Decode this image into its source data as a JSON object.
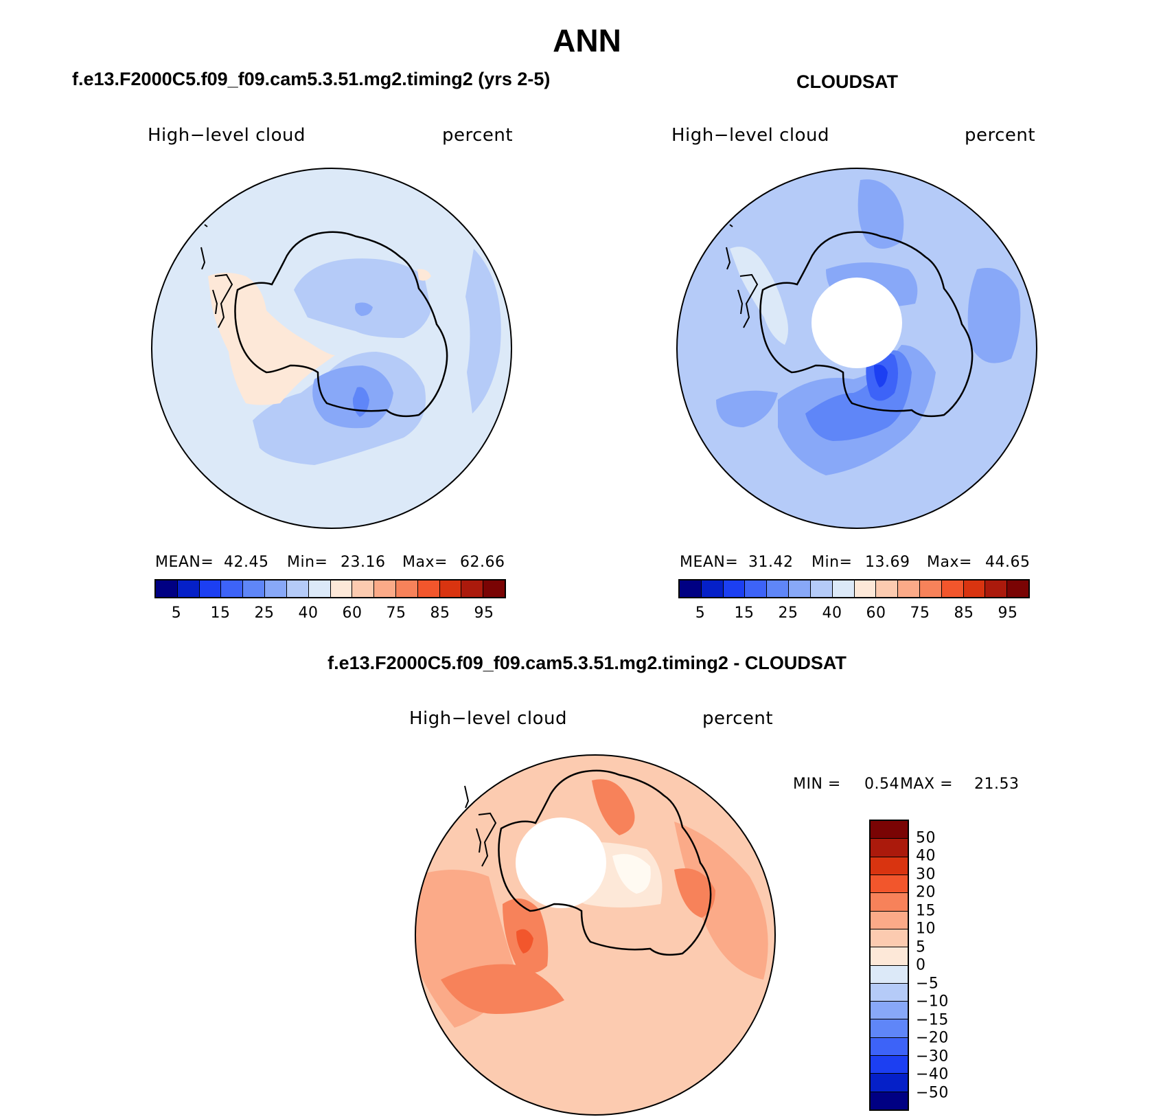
{
  "title": "ANN",
  "panels": {
    "model": {
      "header": "f.e13.F2000C5.f09_f09.cam5.3.51.mg2.timing2 (yrs 2-5)",
      "variable": "High−level cloud",
      "units": "percent",
      "stats": {
        "mean_label": "MEAN=",
        "mean": "42.45",
        "min_label": "Min=",
        "min": "23.16",
        "max_label": "Max=",
        "max": "62.66"
      }
    },
    "obs": {
      "header": "CLOUDSAT",
      "variable": "High−level cloud",
      "units": "percent",
      "stats": {
        "mean_label": "MEAN=",
        "mean": "31.42",
        "min_label": "Min=",
        "min": "13.69",
        "max_label": "Max=",
        "max": "44.65"
      }
    },
    "diff": {
      "header": "f.e13.F2000C5.f09_f09.cam5.3.51.mg2.timing2 - CLOUDSAT",
      "variable": "High−level cloud",
      "units": "percent",
      "stats": {
        "min_label": "MIN =",
        "min": "0.54",
        "max_label": "MAX =",
        "max": "21.53"
      }
    }
  },
  "colorbar_abs": {
    "colors": [
      "#000083",
      "#0520c8",
      "#1c3ff2",
      "#3d63f8",
      "#5f86f8",
      "#88a8f8",
      "#b5cbf8",
      "#dce9f8",
      "#fde8d8",
      "#fccbb0",
      "#fbaa88",
      "#f7825a",
      "#f2562c",
      "#d93410",
      "#ab1a0c",
      "#7a0404"
    ],
    "tick_labels": [
      "5",
      "15",
      "25",
      "40",
      "60",
      "75",
      "85",
      "95"
    ]
  },
  "colorbar_diff": {
    "colors": [
      "#7a0404",
      "#ab1a0c",
      "#d93410",
      "#f2562c",
      "#f7825a",
      "#fbaa88",
      "#fccbb0",
      "#fde8d8",
      "#dce9f8",
      "#b5cbf8",
      "#88a8f8",
      "#5f86f8",
      "#3d63f8",
      "#1c3ff2",
      "#0520c8",
      "#000083"
    ],
    "tick_labels": [
      "50",
      "40",
      "30",
      "20",
      "15",
      "10",
      "5",
      "0",
      "−5",
      "−10",
      "−15",
      "−20",
      "−30",
      "−40",
      "−50"
    ]
  }
}
